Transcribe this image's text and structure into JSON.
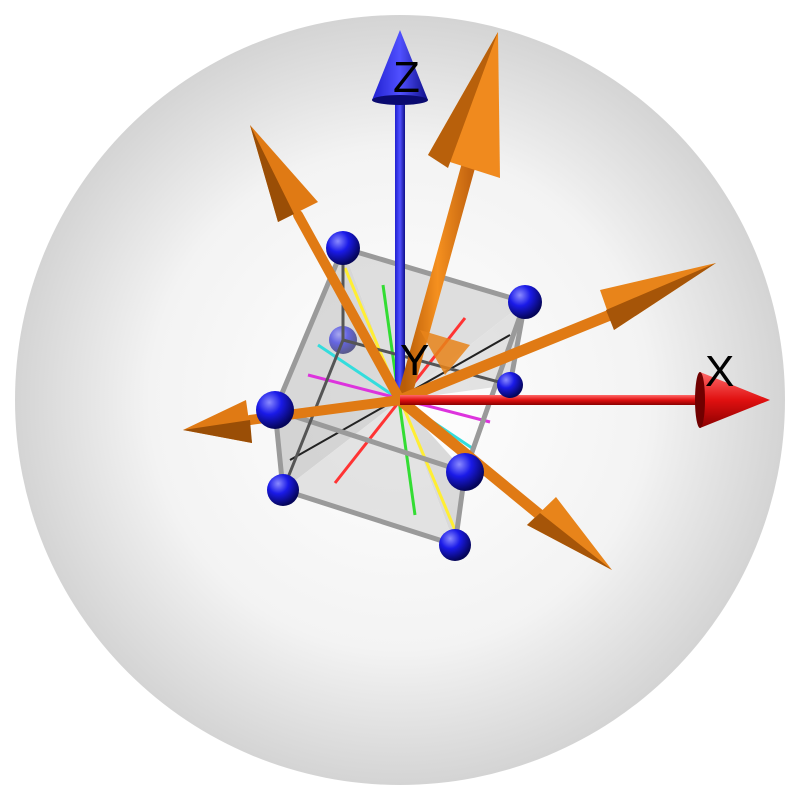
{
  "axes": {
    "x": {
      "label": "X",
      "color": "#e01010"
    },
    "y": {
      "label": "Y",
      "color": "#000000"
    },
    "z": {
      "label": "Z",
      "color": "#1515d0"
    }
  },
  "colors": {
    "sphere": "#d9d9d9",
    "atom": "#1010e0",
    "bond": "#9a9a9a",
    "vector_arrow": "#e8801a",
    "glide_lines": [
      "#ff3333",
      "#33dd33",
      "#ffee33",
      "#33dddd",
      "#dd33dd",
      "#222222"
    ]
  },
  "icons": {
    "sphere": "bounding-sphere",
    "atom": "ball-atom",
    "vector": "3d-arrow"
  }
}
